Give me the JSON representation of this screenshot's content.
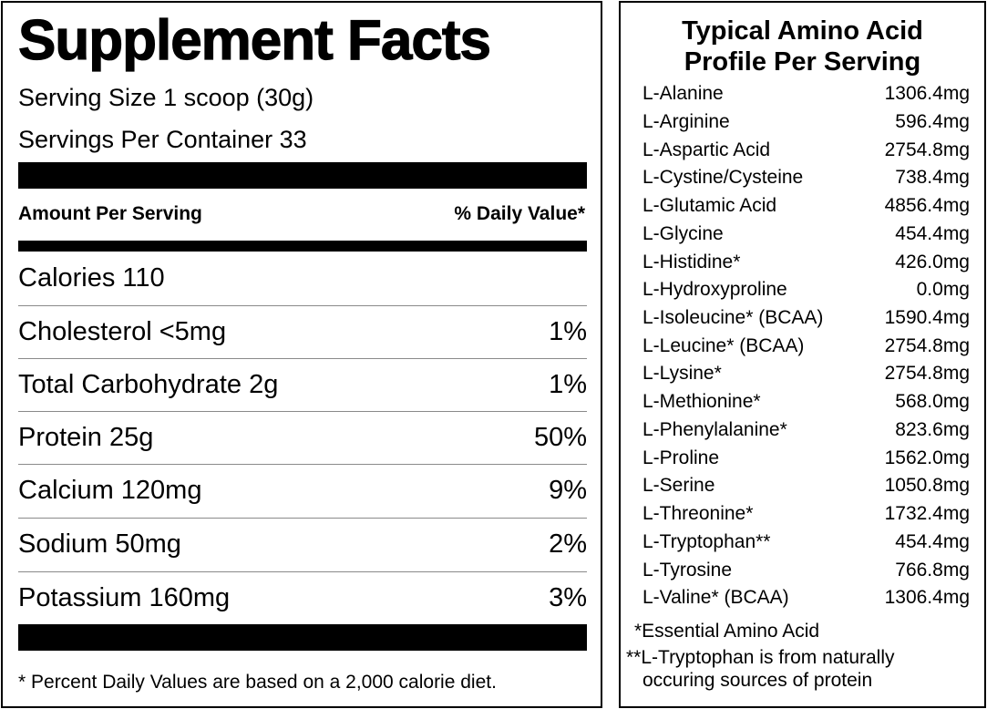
{
  "facts": {
    "title": "Supplement Facts",
    "serving_size": "Serving Size 1 scoop (30g)",
    "servings_per_container": "Servings Per Container 33",
    "amount_header": "Amount Per Serving",
    "dv_header": "% Daily Value*",
    "rows": [
      {
        "name": "Calories 110",
        "dv": ""
      },
      {
        "name": "Cholesterol <5mg",
        "dv": "1%"
      },
      {
        "name": "Total Carbohydrate 2g",
        "dv": "1%"
      },
      {
        "name": "Protein 25g",
        "dv": "50%"
      },
      {
        "name": "Calcium 120mg",
        "dv": "9%"
      },
      {
        "name": "Sodium 50mg",
        "dv": "2%"
      },
      {
        "name": "Potassium 160mg",
        "dv": "3%"
      }
    ],
    "footnote": "* Percent Daily Values are based on a 2,000 calorie diet."
  },
  "amino": {
    "title_line1": "Typical Amino Acid",
    "title_line2": "Profile Per Serving",
    "rows": [
      {
        "name": "L-Alanine",
        "value": "1306.4mg"
      },
      {
        "name": "L-Arginine",
        "value": "596.4mg"
      },
      {
        "name": "L-Aspartic Acid",
        "value": "2754.8mg"
      },
      {
        "name": "L-Cystine/Cysteine",
        "value": "738.4mg"
      },
      {
        "name": "L-Glutamic Acid",
        "value": "4856.4mg"
      },
      {
        "name": "L-Glycine",
        "value": "454.4mg"
      },
      {
        "name": "L-Histidine*",
        "value": "426.0mg"
      },
      {
        "name": "L-Hydroxyproline",
        "value": "0.0mg"
      },
      {
        "name": "L-Isoleucine* (BCAA)",
        "value": "1590.4mg"
      },
      {
        "name": "L-Leucine* (BCAA)",
        "value": "2754.8mg"
      },
      {
        "name": "L-Lysine*",
        "value": "2754.8mg"
      },
      {
        "name": "L-Methionine*",
        "value": "568.0mg"
      },
      {
        "name": "L-Phenylalanine*",
        "value": "823.6mg"
      },
      {
        "name": "L-Proline",
        "value": "1562.0mg"
      },
      {
        "name": "L-Serine",
        "value": "1050.8mg"
      },
      {
        "name": "L-Threonine*",
        "value": "1732.4mg"
      },
      {
        "name": "L-Tryptophan**",
        "value": "454.4mg"
      },
      {
        "name": "L-Tyrosine",
        "value": "766.8mg"
      },
      {
        "name": "L-Valine* (BCAA)",
        "value": "1306.4mg"
      }
    ],
    "note1": "*Essential Amino Acid",
    "note2_line1": "**L-Tryptophan is from naturally",
    "note2_line2": "occuring sources of protein"
  }
}
